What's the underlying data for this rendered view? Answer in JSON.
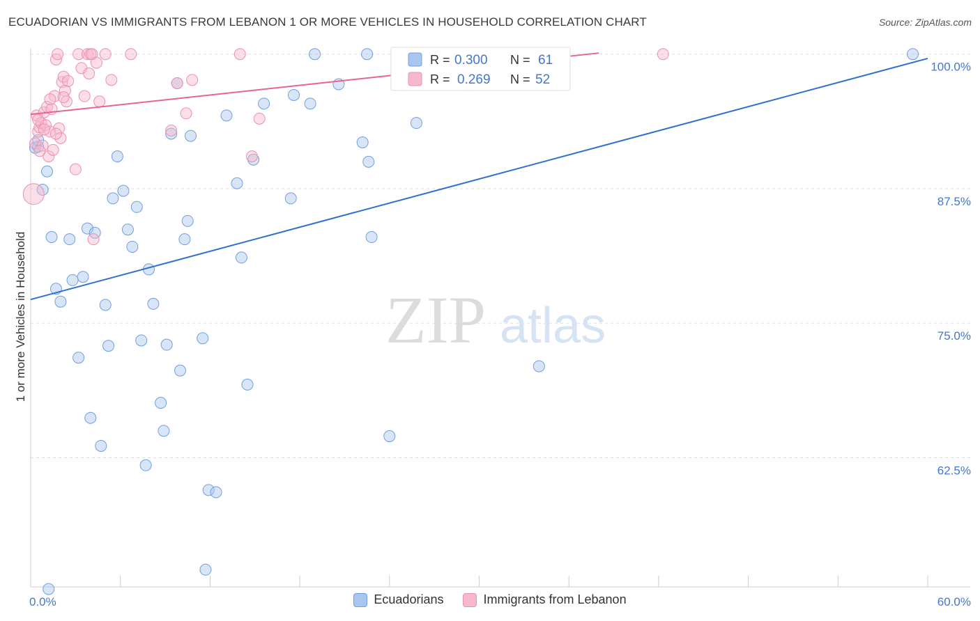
{
  "title": "ECUADORIAN VS IMMIGRANTS FROM LEBANON 1 OR MORE VEHICLES IN HOUSEHOLD CORRELATION CHART",
  "source": "Source: ZipAtlas.com",
  "watermark": {
    "zip": "ZIP",
    "atlas": "atlas"
  },
  "colors": {
    "blue_fill": "#a9c6ee",
    "blue_stroke": "#6f9fe0",
    "blue_line": "#2f6fcf",
    "pink_fill": "#f6b9cc",
    "pink_stroke": "#ee8fae",
    "pink_line": "#e8638e",
    "axis_text": "#4477cc",
    "grid": "#dddddd"
  },
  "chart_data": {
    "type": "scatter",
    "xlabel": "",
    "ylabel": "1 or more Vehicles in Household",
    "xlim": [
      0,
      60
    ],
    "ylim": [
      50.5,
      100.5
    ],
    "x_tick_labels": [
      {
        "value": 0,
        "label": "0.0%"
      },
      {
        "value": 60,
        "label": "60.0%"
      }
    ],
    "y_tick_labels": [
      {
        "value": 100,
        "label": "100.0%"
      },
      {
        "value": 87.5,
        "label": "87.5%"
      },
      {
        "value": 75,
        "label": "75.0%"
      },
      {
        "value": 62.5,
        "label": "62.5%"
      }
    ],
    "legend": [
      {
        "r_label": "R =",
        "r_value": "0.300",
        "n_label": "N =",
        "n_value": "61"
      },
      {
        "r_label": "R =",
        "r_value": "0.269",
        "n_label": "N =",
        "n_value": "52"
      }
    ],
    "series": [
      {
        "name": "Ecuadorians",
        "color": "blue",
        "trend": {
          "x0": 0,
          "y0": 77.2,
          "x1": 60,
          "y1": 99.6
        },
        "points": [
          [
            0.3,
            91.3
          ],
          [
            0.5,
            91.4
          ],
          [
            0.5,
            92.0
          ],
          [
            0.8,
            87.4
          ],
          [
            1.1,
            89.1
          ],
          [
            1.4,
            83.0
          ],
          [
            1.7,
            78.2
          ],
          [
            2.0,
            77.0
          ],
          [
            2.6,
            82.8
          ],
          [
            2.8,
            79.0
          ],
          [
            3.2,
            71.8
          ],
          [
            3.5,
            79.3
          ],
          [
            3.8,
            83.8
          ],
          [
            4.0,
            66.2
          ],
          [
            4.3,
            83.4
          ],
          [
            4.7,
            63.6
          ],
          [
            5.0,
            76.7
          ],
          [
            5.2,
            72.9
          ],
          [
            5.5,
            86.6
          ],
          [
            5.8,
            90.5
          ],
          [
            6.2,
            87.3
          ],
          [
            6.5,
            83.7
          ],
          [
            6.8,
            82.1
          ],
          [
            7.1,
            85.8
          ],
          [
            7.4,
            73.4
          ],
          [
            7.7,
            61.8
          ],
          [
            7.9,
            80.0
          ],
          [
            8.2,
            76.8
          ],
          [
            8.7,
            67.6
          ],
          [
            8.9,
            65.0
          ],
          [
            9.1,
            73.0
          ],
          [
            9.4,
            92.6
          ],
          [
            9.8,
            97.3
          ],
          [
            10.0,
            70.6
          ],
          [
            10.3,
            82.8
          ],
          [
            10.5,
            84.5
          ],
          [
            10.7,
            92.4
          ],
          [
            11.5,
            73.6
          ],
          [
            11.7,
            52.1
          ],
          [
            11.9,
            59.5
          ],
          [
            12.4,
            59.3
          ],
          [
            13.1,
            94.3
          ],
          [
            13.8,
            88.0
          ],
          [
            14.1,
            81.1
          ],
          [
            14.5,
            69.3
          ],
          [
            14.9,
            90.2
          ],
          [
            15.6,
            95.4
          ],
          [
            17.4,
            86.6
          ],
          [
            17.6,
            96.2
          ],
          [
            18.7,
            95.4
          ],
          [
            19.0,
            100.0
          ],
          [
            20.6,
            97.2
          ],
          [
            22.2,
            91.8
          ],
          [
            22.6,
            90.0
          ],
          [
            22.8,
            83.0
          ],
          [
            22.5,
            100.0
          ],
          [
            24.0,
            64.5
          ],
          [
            25.8,
            93.6
          ],
          [
            34.0,
            71.0
          ],
          [
            59.0,
            100.0
          ],
          [
            1.2,
            50.3
          ]
        ]
      },
      {
        "name": "Immigrants from Lebanon",
        "color": "pink",
        "trend": {
          "x0": 0,
          "y0": 94.4,
          "x1": 38,
          "y1": 100.1
        },
        "points": [
          [
            0.2,
            87.0
          ],
          [
            0.3,
            91.7
          ],
          [
            0.4,
            94.3
          ],
          [
            0.5,
            92.8
          ],
          [
            0.6,
            93.2
          ],
          [
            0.7,
            93.6
          ],
          [
            0.8,
            91.5
          ],
          [
            0.9,
            94.6
          ],
          [
            1.0,
            93.4
          ],
          [
            1.1,
            95.1
          ],
          [
            1.2,
            90.5
          ],
          [
            1.3,
            92.8
          ],
          [
            1.4,
            94.9
          ],
          [
            1.5,
            91.1
          ],
          [
            1.6,
            96.1
          ],
          [
            1.7,
            99.5
          ],
          [
            1.8,
            100.0
          ],
          [
            1.9,
            93.1
          ],
          [
            2.0,
            92.2
          ],
          [
            2.1,
            97.4
          ],
          [
            2.2,
            97.9
          ],
          [
            2.3,
            96.6
          ],
          [
            2.4,
            95.6
          ],
          [
            2.5,
            97.5
          ],
          [
            3.0,
            89.3
          ],
          [
            3.2,
            100.0
          ],
          [
            3.4,
            98.7
          ],
          [
            3.6,
            96.1
          ],
          [
            3.8,
            100.0
          ],
          [
            4.0,
            100.0
          ],
          [
            4.1,
            100.0
          ],
          [
            4.2,
            82.8
          ],
          [
            4.4,
            99.2
          ],
          [
            4.6,
            95.6
          ],
          [
            5.0,
            100.0
          ],
          [
            5.4,
            97.6
          ],
          [
            6.7,
            100.0
          ],
          [
            9.4,
            92.9
          ],
          [
            9.8,
            97.3
          ],
          [
            10.4,
            94.5
          ],
          [
            10.8,
            97.6
          ],
          [
            14.0,
            100.0
          ],
          [
            14.8,
            90.5
          ],
          [
            15.3,
            94.0
          ],
          [
            42.3,
            100.0
          ],
          [
            0.5,
            93.9
          ],
          [
            0.9,
            93.0
          ],
          [
            1.3,
            95.8
          ],
          [
            2.2,
            96.0
          ],
          [
            0.6,
            91.0
          ],
          [
            1.7,
            92.6
          ],
          [
            3.9,
            98.2
          ]
        ]
      }
    ]
  }
}
